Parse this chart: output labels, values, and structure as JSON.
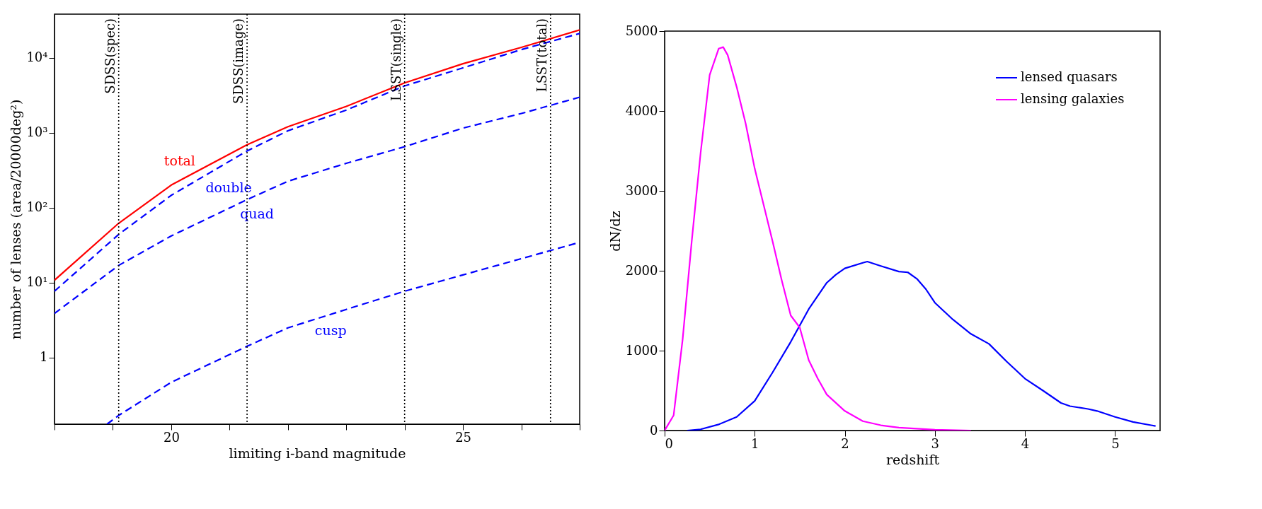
{
  "chart_data": [
    {
      "type": "line",
      "xlabel": "limiting i-band magnitude",
      "ylabel": "number of lenses (area/20000deg²)",
      "log": "y",
      "grid": false,
      "legend": false,
      "line_style": "solid",
      "xlim": [
        18,
        27
      ],
      "xticks": [
        {
          "value": 18,
          "label": null
        },
        {
          "value": 19,
          "label": null
        },
        20,
        {
          "value": 21,
          "label": null
        },
        {
          "value": 22,
          "label": null
        },
        {
          "value": 23,
          "label": null
        },
        {
          "value": 24,
          "label": null
        },
        25,
        {
          "value": 26,
          "label": null
        },
        {
          "value": 27,
          "label": null
        }
      ],
      "ylim": [
        0.13,
        38000
      ],
      "yticks": [
        1,
        {
          "value": 10,
          "label": "10¹"
        },
        {
          "value": 100,
          "label": "10²"
        },
        {
          "value": 1000,
          "label": "10³"
        },
        {
          "value": 10000,
          "label": "10⁴"
        }
      ],
      "x": [
        18,
        19.1,
        20,
        21.3,
        22,
        23,
        24,
        25,
        26,
        27
      ],
      "series": [
        {
          "name": "total",
          "color": "#ff0000",
          "values": [
            10.8,
            62,
            200,
            690,
            1200,
            2240,
            4600,
            8300,
            13700,
            23400
          ]
        },
        {
          "name": "double",
          "color": "#0000ff",
          "line_style": "dashed",
          "values": [
            7.7,
            44,
            146,
            570,
            1060,
            2000,
            4200,
            7300,
            12800,
            21000
          ]
        },
        {
          "name": "quad",
          "color": "#0000ff",
          "line_style": "dashed",
          "values": [
            3.9,
            17,
            42,
            128,
            225,
            390,
            650,
            1150,
            1800,
            2970
          ]
        },
        {
          "name": "cusp",
          "color": "#0000ff",
          "line_style": "dashed",
          "x": [
            18.9,
            19.1,
            20,
            21.3,
            22,
            23,
            24,
            25,
            26,
            27
          ],
          "values": [
            0.13,
            0.17,
            0.47,
            1.42,
            2.5,
            4.4,
            7.7,
            12.7,
            20.9,
            34.5
          ]
        }
      ],
      "ref_lines": [
        {
          "axis": "x",
          "value": 19.1,
          "label": "SDSS(spec)",
          "color": "#000000",
          "line_style": "dotted"
        },
        {
          "axis": "x",
          "value": 21.3,
          "label": "SDSS(image)",
          "color": "#000000",
          "line_style": "dotted"
        },
        {
          "axis": "x",
          "value": 24,
          "label": "LSST(single)",
          "color": "#000000",
          "line_style": "dotted"
        },
        {
          "axis": "x",
          "value": 26.5,
          "label": "LSST(total)",
          "color": "#000000",
          "line_style": "dotted"
        }
      ]
    },
    {
      "type": "line",
      "xlabel": "redshift",
      "ylabel": "dN/dz",
      "grid": false,
      "legend": "top right",
      "line_style": "solid",
      "xlim": [
        0,
        5.5
      ],
      "xticks": [
        0,
        1,
        2,
        3,
        4,
        5
      ],
      "ylim": [
        0,
        5000
      ],
      "yticks": [
        0,
        1000,
        2000,
        3000,
        4000,
        5000
      ],
      "series": [
        {
          "name": "lensed quasars",
          "color": "#0000ff",
          "x": [
            0.25,
            0.4,
            0.6,
            0.8,
            1.0,
            1.2,
            1.4,
            1.6,
            1.8,
            1.9,
            2.0,
            2.2,
            2.25,
            2.4,
            2.6,
            2.7,
            2.8,
            2.9,
            3.0,
            3.2,
            3.4,
            3.6,
            3.8,
            4.0,
            4.2,
            4.4,
            4.5,
            4.7,
            4.8,
            5.0,
            5.2,
            5.4,
            5.45
          ],
          "values": [
            0,
            15,
            76,
            170,
            370,
            730,
            1110,
            1520,
            1850,
            1950,
            2030,
            2100,
            2115,
            2060,
            1990,
            1980,
            1900,
            1770,
            1600,
            1390,
            1210,
            1085,
            860,
            650,
            500,
            345,
            305,
            270,
            245,
            170,
            107,
            66,
            56
          ]
        },
        {
          "name": "lensing galaxies",
          "color": "#ff00ff",
          "x": [
            0,
            0.1,
            0.2,
            0.3,
            0.4,
            0.5,
            0.6,
            0.65,
            0.7,
            0.8,
            0.9,
            1.0,
            1.1,
            1.2,
            1.3,
            1.4,
            1.5,
            1.6,
            1.7,
            1.8,
            2.0,
            2.2,
            2.4,
            2.6,
            3.0,
            3.4
          ],
          "values": [
            0,
            190,
            1140,
            2360,
            3480,
            4450,
            4780,
            4800,
            4700,
            4300,
            3840,
            3280,
            2820,
            2360,
            1880,
            1440,
            1290,
            880,
            650,
            450,
            245,
            117,
            66,
            36,
            10,
            0
          ]
        }
      ]
    }
  ]
}
